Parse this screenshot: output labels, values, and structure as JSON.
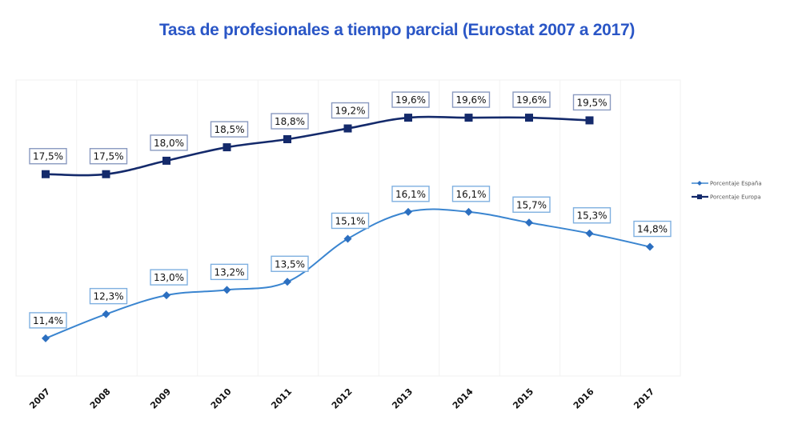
{
  "chart_data": {
    "type": "line",
    "title": "Tasa de profesionales a tiempo parcial (Eurostat 2007 a 2017)",
    "xlabel": "",
    "ylabel": "",
    "x": [
      "2007",
      "2008",
      "2009",
      "2010",
      "2011",
      "2012",
      "2013",
      "2014",
      "2015",
      "2016",
      "2017"
    ],
    "ylim": [
      10,
      21
    ],
    "grid": "vertical",
    "legend_position": "right",
    "series": [
      {
        "name": "Porcentaje España",
        "color": "#3a85d0",
        "marker": "diamond",
        "values": [
          11.4,
          12.3,
          13.0,
          13.2,
          13.5,
          15.1,
          16.1,
          16.1,
          15.7,
          15.3,
          14.8
        ],
        "labels": [
          "11,4%",
          "12,3%",
          "13,0%",
          "13,2%",
          "13,5%",
          "15,1%",
          "16,1%",
          "16,1%",
          "15,7%",
          "15,3%",
          "14,8%"
        ],
        "label_border": "#7fb0e0"
      },
      {
        "name": "Porcentaje Europa",
        "color": "#142a6b",
        "marker": "square",
        "values": [
          17.5,
          17.5,
          18.0,
          18.5,
          18.8,
          19.2,
          19.6,
          19.6,
          19.6,
          19.5,
          null
        ],
        "labels": [
          "17,5%",
          "17,5%",
          "18,0%",
          "18,5%",
          "18,8%",
          "19,2%",
          "19,6%",
          "19,6%",
          "19,6%",
          "19,5%",
          null
        ],
        "label_border": "#8a9ac0"
      }
    ]
  }
}
